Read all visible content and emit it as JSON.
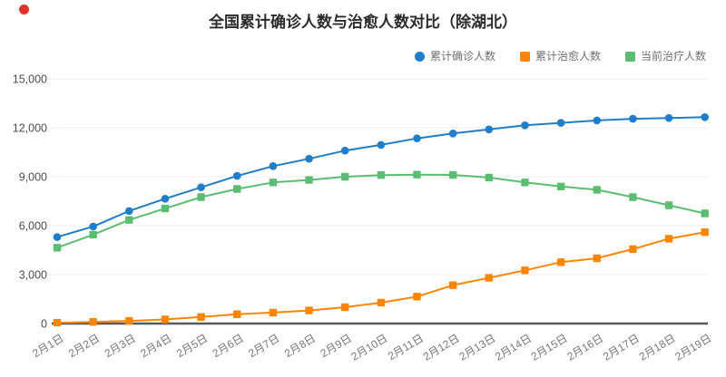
{
  "page": {
    "red_marker_color": "#e0312b",
    "background": "#ffffff"
  },
  "chart_data": {
    "type": "line",
    "title": "全国累计确诊人数与治愈人数对比（除湖北）",
    "categories": [
      "2月1日",
      "2月2日",
      "2月3日",
      "2月4日",
      "2月5日",
      "2月6日",
      "2月7日",
      "2月8日",
      "2月9日",
      "2月10日",
      "2月11日",
      "2月12日",
      "2月13日",
      "2月14日",
      "2月15日",
      "2月16日",
      "2月17日",
      "2月18日",
      "2月19日"
    ],
    "series": [
      {
        "name": "累计确诊人数",
        "marker": "circle",
        "color": "#1f7dc9",
        "values": [
          5300,
          5950,
          6900,
          7650,
          8350,
          9050,
          9650,
          10100,
          10600,
          10950,
          11350,
          11650,
          11900,
          12150,
          12300,
          12450,
          12550,
          12600,
          12650
        ]
      },
      {
        "name": "累计治愈人数",
        "marker": "square",
        "color": "#ff8400",
        "values": [
          50,
          100,
          160,
          250,
          400,
          570,
          670,
          800,
          1000,
          1280,
          1650,
          2350,
          2800,
          3260,
          3760,
          4000,
          4560,
          5200,
          5600
        ]
      },
      {
        "name": "当前治疗人数",
        "marker": "square",
        "color": "#5bbd72",
        "values": [
          4650,
          5450,
          6350,
          7050,
          7750,
          8250,
          8650,
          8800,
          9000,
          9100,
          9130,
          9110,
          8950,
          8650,
          8400,
          8200,
          7750,
          7250,
          6750
        ]
      }
    ],
    "ylim": [
      0,
      15000
    ],
    "yticks": [
      0,
      3000,
      6000,
      9000,
      12000,
      15000
    ],
    "ytick_labels": [
      "0",
      "3,000",
      "6,000",
      "9,000",
      "12,000",
      "15,000"
    ],
    "xlabel": "",
    "ylabel": "",
    "grid": true,
    "legend_position": "top-right",
    "style": {
      "grid_color": "#ececec",
      "axis_color": "#595959",
      "ytick_color": "#4c4c4c",
      "xtick_color": "#777777",
      "title_color": "#2b2b2b",
      "legend_text_color": "#6f6f6f"
    }
  }
}
